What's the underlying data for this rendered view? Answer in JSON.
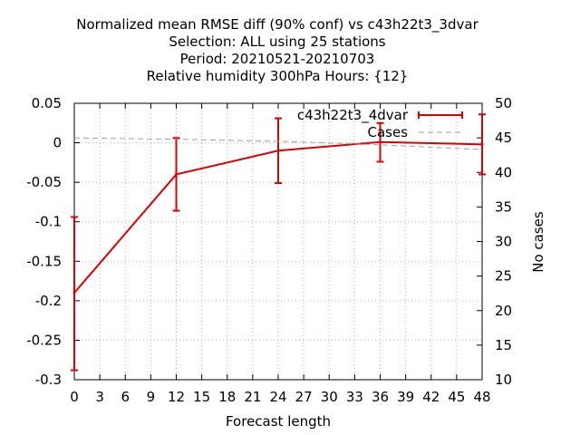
{
  "chart_data": {
    "type": "line",
    "title_lines": [
      "Normalized mean RMSE diff (90% conf) vs c43h22t3_3dvar",
      "Selection: ALL using    25 stations",
      "Period: 20210521-20210703",
      "Relative humidity 300hPa   Hours: {12}"
    ],
    "xlabel": "Forecast length",
    "ylabel": "",
    "y2label": "No cases",
    "xlim": [
      0,
      48
    ],
    "ylim": [
      -0.3,
      0.05
    ],
    "y2lim": [
      10,
      50
    ],
    "x_ticks": [
      "0",
      "3",
      "6",
      "9",
      "12",
      "15",
      "18",
      "21",
      "24",
      "27",
      "30",
      "33",
      "36",
      "39",
      "42",
      "45",
      "48"
    ],
    "y_ticks": [
      "0.05",
      "0",
      "-0.05",
      "-0.1",
      "-0.15",
      "-0.2",
      "-0.25",
      "-0.3"
    ],
    "y2_ticks": [
      "50",
      "45",
      "40",
      "35",
      "30",
      "25",
      "20",
      "15",
      "10"
    ],
    "grid": true,
    "legend_position": "top-right",
    "series": [
      {
        "name": "c43h22t3_4dvar",
        "color": "#dd0000",
        "style": "line-errorbars",
        "axis": "y",
        "x": [
          0,
          12,
          24,
          36,
          48
        ],
        "values": [
          -0.19,
          -0.04,
          -0.01,
          0.001,
          -0.002
        ],
        "err_low": [
          -0.288,
          -0.086,
          -0.051,
          -0.024,
          -0.04
        ],
        "err_high": [
          -0.094,
          0.006,
          0.031,
          0.025,
          0.036
        ]
      },
      {
        "name": "Cases",
        "color": "#a0a0a0",
        "style": "dashed",
        "axis": "y2",
        "x": [
          0,
          12,
          24,
          36,
          48
        ],
        "values": [
          45,
          44.8,
          44.5,
          44.0,
          43.3
        ]
      }
    ]
  }
}
